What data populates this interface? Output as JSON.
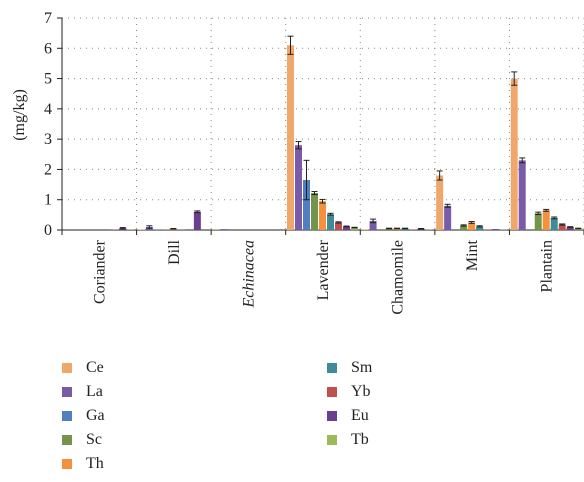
{
  "chart_data": {
    "type": "bar",
    "title": "",
    "xlabel": "",
    "ylabel": "(mg/kg)",
    "ylim": [
      0,
      7
    ],
    "yticks": [
      0,
      1,
      2,
      3,
      4,
      5,
      6,
      7
    ],
    "grid": true,
    "legend_position": "bottom",
    "categories": [
      "Coriander",
      "Dill",
      "Echinacea",
      "Lavender",
      "Chamomile",
      "Mint",
      "Plantain"
    ],
    "italic_categories": [
      "Echinacea"
    ],
    "series": [
      {
        "name": "Ce",
        "color": "#F0A76B",
        "values": [
          0,
          0.02,
          0.01,
          6.1,
          0.02,
          1.8,
          5.0
        ],
        "errors": [
          0,
          0,
          0,
          0.3,
          0,
          0.15,
          0.22
        ]
      },
      {
        "name": "La",
        "color": "#7A5BA8",
        "values": [
          0,
          0.1,
          0.03,
          2.8,
          0.3,
          0.8,
          2.3
        ],
        "errors": [
          0,
          0.04,
          0,
          0.12,
          0.06,
          0.05,
          0.08
        ]
      },
      {
        "name": "Ga",
        "color": "#4F7FBF",
        "values": [
          0,
          0.01,
          0,
          1.65,
          0,
          0,
          0
        ],
        "errors": [
          0,
          0,
          0,
          0.65,
          0,
          0,
          0
        ]
      },
      {
        "name": "Sc",
        "color": "#73944A",
        "values": [
          0,
          0.01,
          0,
          1.22,
          0.05,
          0.15,
          0.55
        ],
        "errors": [
          0,
          0,
          0,
          0.05,
          0.01,
          0.02,
          0.04
        ]
      },
      {
        "name": "Th",
        "color": "#F4913C",
        "values": [
          0,
          0.04,
          0,
          0.95,
          0.05,
          0.25,
          0.65
        ],
        "errors": [
          0,
          0.01,
          0,
          0.06,
          0.01,
          0.03,
          0.03
        ]
      },
      {
        "name": "Sm",
        "color": "#3E8C98",
        "values": [
          0,
          0.01,
          0,
          0.52,
          0.05,
          0.12,
          0.4
        ],
        "errors": [
          0,
          0,
          0,
          0.03,
          0.01,
          0.02,
          0.03
        ]
      },
      {
        "name": "Yb",
        "color": "#C0504D",
        "values": [
          0.01,
          0,
          0,
          0.25,
          0.01,
          0.02,
          0.18
        ],
        "errors": [
          0,
          0,
          0,
          0.02,
          0,
          0,
          0.02
        ]
      },
      {
        "name": "Eu",
        "color": "#6B3F8E",
        "values": [
          0.06,
          0.6,
          0,
          0.12,
          0.04,
          0.03,
          0.1
        ],
        "errors": [
          0.02,
          0.03,
          0,
          0.01,
          0.01,
          0,
          0.01
        ]
      },
      {
        "name": "Tb",
        "color": "#9BBB59",
        "values": [
          0.01,
          0,
          0,
          0.08,
          0.01,
          0.01,
          0.05
        ],
        "errors": [
          0,
          0,
          0,
          0.01,
          0,
          0,
          0.01
        ]
      }
    ]
  }
}
